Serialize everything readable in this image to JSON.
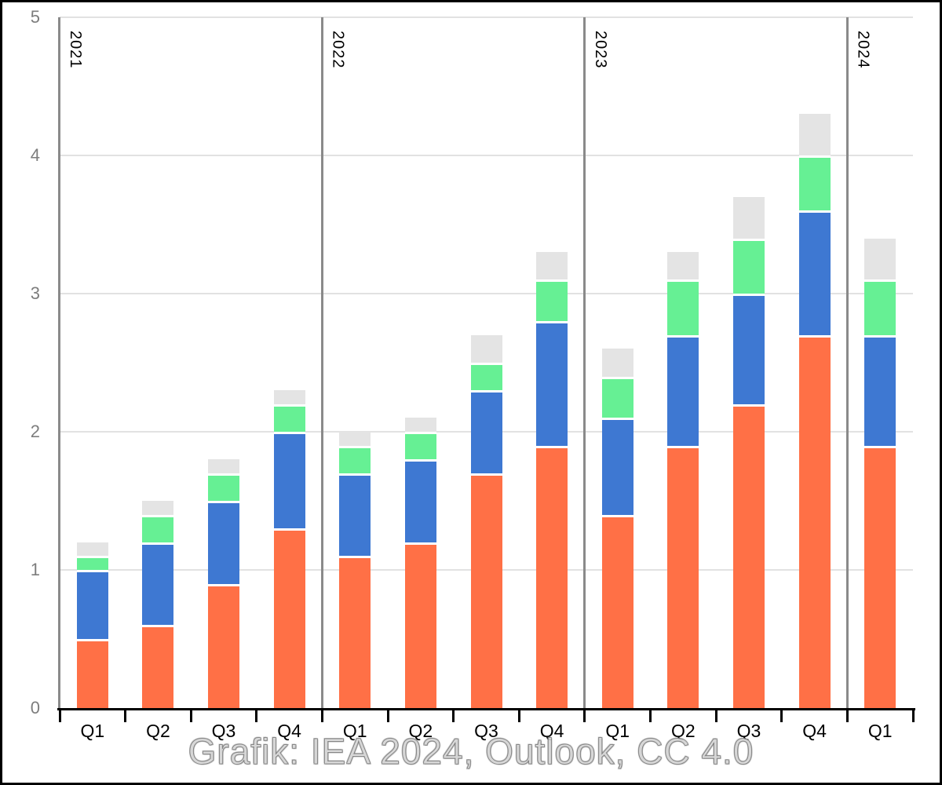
{
  "chart_data": {
    "type": "bar",
    "stacked": true,
    "title": "",
    "xlabel": "",
    "ylabel": "",
    "ylim": [
      0,
      5
    ],
    "yticks": [
      "0",
      "1",
      "2",
      "3",
      "4",
      "5"
    ],
    "grid": true,
    "legend_position": "none",
    "categories": [
      "Q1",
      "Q2",
      "Q3",
      "Q4",
      "Q1",
      "Q2",
      "Q3",
      "Q4",
      "Q1",
      "Q2",
      "Q3",
      "Q4",
      "Q1"
    ],
    "year_groups": [
      {
        "label": "2021",
        "boundary_index": 0
      },
      {
        "label": "2022",
        "boundary_index": 4
      },
      {
        "label": "2023",
        "boundary_index": 8
      },
      {
        "label": "2024",
        "boundary_index": 12
      }
    ],
    "series": [
      {
        "name": "segment-orange",
        "color": "#FF7046",
        "values": [
          0.5,
          0.6,
          0.9,
          1.3,
          1.1,
          1.2,
          1.7,
          1.9,
          1.4,
          1.9,
          2.2,
          2.7,
          1.9
        ]
      },
      {
        "name": "segment-blue",
        "color": "#3E78D2",
        "values": [
          0.5,
          0.6,
          0.6,
          0.7,
          0.6,
          0.6,
          0.6,
          0.9,
          0.7,
          0.8,
          0.8,
          0.9,
          0.8
        ]
      },
      {
        "name": "segment-green",
        "color": "#66F094",
        "values": [
          0.1,
          0.2,
          0.2,
          0.2,
          0.2,
          0.2,
          0.2,
          0.3,
          0.3,
          0.4,
          0.4,
          0.4,
          0.4
        ]
      },
      {
        "name": "segment-gray",
        "color": "#E4E4E4",
        "values": [
          0.1,
          0.1,
          0.1,
          0.1,
          0.1,
          0.1,
          0.2,
          0.2,
          0.2,
          0.2,
          0.3,
          0.3,
          0.3
        ]
      }
    ],
    "stack_totals": [
      1.2,
      1.5,
      1.8,
      2.3,
      2.0,
      2.1,
      2.7,
      3.3,
      2.6,
      3.3,
      3.7,
      4.3,
      3.4
    ],
    "caption": "Grafik: IEA 2024, Outlook, CC 4.0",
    "colors": {
      "gridline": "#E2E2E2",
      "axis_gray": "#8A8A8A",
      "axis_black": "#000000",
      "ytick_text": "#7D7D7D",
      "xtick_text": "#000000",
      "background": "#FFFFFF"
    }
  }
}
